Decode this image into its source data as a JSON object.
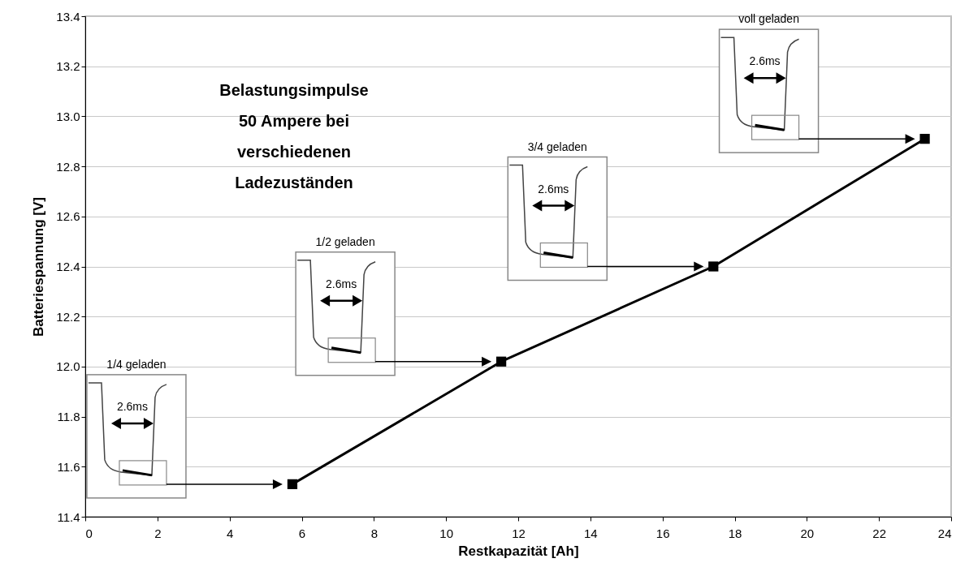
{
  "chart_data": {
    "type": "line",
    "xlabel": "Restkapazität [Ah]",
    "ylabel": "Batteriespannung [V]",
    "x": [
      5.74,
      11.53,
      17.41,
      23.27
    ],
    "series": [
      {
        "color": "#000000",
        "values": [
          11.53,
          12.02,
          12.4,
          12.91
        ]
      }
    ],
    "xlim": [
      0,
      24
    ],
    "xticks": [
      0,
      2,
      4,
      6,
      8,
      10,
      12,
      14,
      16,
      18,
      20,
      22,
      24
    ],
    "ylim": [
      11.4,
      13.4
    ],
    "yticks": [
      11.4,
      11.6,
      11.8,
      {
        "value": 12,
        "label": "12.0"
      },
      12.2,
      12.4,
      12.6,
      12.8,
      {
        "value": 13,
        "label": "13.0"
      },
      13.2,
      13.4
    ],
    "grid": "y",
    "marker": "square",
    "line_style": "solid",
    "annotations": [
      "Belastungsimpulse\n50 Ampere bei\nverschiedenen\nLadezuständen",
      "1/4 geladen",
      "2.6ms",
      "1/2 geladen",
      "2.6ms",
      "3/4 geladen",
      "2.6ms",
      "voll geladen",
      "2.6ms"
    ]
  }
}
